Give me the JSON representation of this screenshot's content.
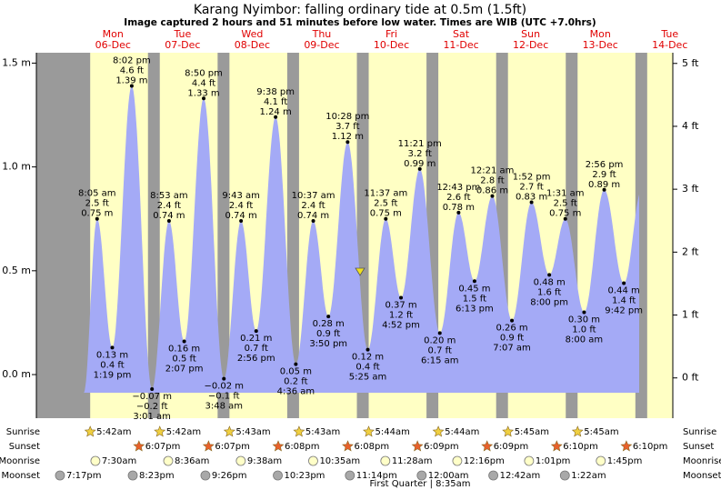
{
  "chart_data": {
    "type": "tide",
    "title": "Karang Nyimbor: falling  ordinary tide at 0.5m (1.5ft)",
    "subtitle": "Image captured 2 hours and 51 minutes before low water. Times are WIB (UTC +7.0hrs)",
    "color": "#a4aaf6",
    "ylim": [
      -0.21,
      1.55
    ],
    "yticks": [
      {
        "value": 0,
        "label": "0.0 m"
      },
      {
        "value": 0.5,
        "label": "0.5 m"
      },
      {
        "value": 1,
        "label": "1.0 m"
      },
      {
        "value": 1.5,
        "label": "1.5 m"
      }
    ],
    "y2lim": [
      -0.64,
      5.17
    ],
    "y2ticks": [
      {
        "value": 0,
        "label": "0 ft"
      },
      {
        "value": 1,
        "label": "1 ft"
      },
      {
        "value": 2,
        "label": "2 ft"
      },
      {
        "value": 3,
        "label": "3 ft"
      },
      {
        "value": 4,
        "label": "4 ft"
      },
      {
        "value": 5,
        "label": "5 ft"
      }
    ],
    "days": [
      {
        "weekday": "Mon",
        "date": "06-Dec",
        "tides": [
          {
            "time": "8:05 am",
            "value": 0.75,
            "m": "0.75 m",
            "ft": "2.5 ft"
          },
          {
            "time": "1:19 pm",
            "value": 0.13,
            "m": "0.13 m",
            "ft": "0.4 ft"
          },
          {
            "time": "8:02 pm",
            "value": 1.39,
            "m": "1.39 m",
            "ft": "4.6 ft"
          }
        ]
      },
      {
        "weekday": "Tue",
        "date": "07-Dec",
        "tides": [
          {
            "time": "3:01 am",
            "value": -0.07,
            "m": "−0.07 m",
            "ft": "−0.2 ft"
          },
          {
            "time": "8:53 am",
            "value": 0.74,
            "m": "0.74 m",
            "ft": "2.4 ft"
          },
          {
            "time": "2:07 pm",
            "value": 0.16,
            "m": "0.16 m",
            "ft": "0.5 ft"
          },
          {
            "time": "8:50 pm",
            "value": 1.33,
            "m": "1.33 m",
            "ft": "4.4 ft"
          }
        ]
      },
      {
        "weekday": "Wed",
        "date": "08-Dec",
        "tides": [
          {
            "time": "3:48 am",
            "value": -0.02,
            "m": "−0.02 m",
            "ft": "−0.1 ft"
          },
          {
            "time": "9:43 am",
            "value": 0.74,
            "m": "0.74 m",
            "ft": "2.4 ft"
          },
          {
            "time": "2:56 pm",
            "value": 0.21,
            "m": "0.21 m",
            "ft": "0.7 ft"
          },
          {
            "time": "9:38 pm",
            "value": 1.24,
            "m": "1.24 m",
            "ft": "4.1 ft"
          }
        ]
      },
      {
        "weekday": "Thu",
        "date": "09-Dec",
        "tides": [
          {
            "time": "4:36 am",
            "value": 0.05,
            "m": "0.05 m",
            "ft": "0.2 ft"
          },
          {
            "time": "10:37 am",
            "value": 0.74,
            "m": "0.74 m",
            "ft": "2.4 ft"
          },
          {
            "time": "3:50 pm",
            "value": 0.28,
            "m": "0.28 m",
            "ft": "0.9 ft"
          },
          {
            "time": "10:28 pm",
            "value": 1.12,
            "m": "1.12 m",
            "ft": "3.7 ft"
          }
        ]
      },
      {
        "weekday": "Fri",
        "date": "10-Dec",
        "tides": [
          {
            "time": "5:25 am",
            "value": 0.12,
            "m": "0.12 m",
            "ft": "0.4 ft"
          },
          {
            "time": "11:37 am",
            "value": 0.75,
            "m": "0.75 m",
            "ft": "2.5 ft"
          },
          {
            "time": "4:52 pm",
            "value": 0.37,
            "m": "0.37 m",
            "ft": "1.2 ft"
          },
          {
            "time": "11:21 pm",
            "value": 0.99,
            "m": "0.99 m",
            "ft": "3.2 ft"
          }
        ]
      },
      {
        "weekday": "Sat",
        "date": "11-Dec",
        "tides": [
          {
            "time": "6:15 am",
            "value": 0.2,
            "m": "0.20 m",
            "ft": "0.7 ft"
          },
          {
            "time": "12:43 pm",
            "value": 0.78,
            "m": "0.78 m",
            "ft": "2.6 ft"
          },
          {
            "time": "6:13 pm",
            "value": 0.45,
            "m": "0.45 m",
            "ft": "1.5 ft"
          }
        ]
      },
      {
        "weekday": "Sun",
        "date": "12-Dec",
        "tides": [
          {
            "time": "12:21 am",
            "value": 0.86,
            "m": "0.86 m",
            "ft": "2.8 ft"
          },
          {
            "time": "7:07 am",
            "value": 0.26,
            "m": "0.26 m",
            "ft": "0.9 ft"
          },
          {
            "time": "1:52 pm",
            "value": 0.83,
            "m": "0.83 m",
            "ft": "2.7 ft"
          },
          {
            "time": "8:00 pm",
            "value": 0.48,
            "m": "0.48 m",
            "ft": "1.6 ft"
          }
        ]
      },
      {
        "weekday": "Mon",
        "date": "13-Dec",
        "tides": [
          {
            "time": "1:31 am",
            "value": 0.75,
            "m": "0.75 m",
            "ft": "2.5 ft"
          },
          {
            "time": "8:00 am",
            "value": 0.3,
            "m": "0.30 m",
            "ft": "1.0 ft"
          },
          {
            "time": "2:56 pm",
            "value": 0.89,
            "m": "0.89 m",
            "ft": "2.9 ft"
          },
          {
            "time": "9:42 pm",
            "value": 0.44,
            "m": "0.44 m",
            "ft": "1.4 ft"
          }
        ]
      },
      {
        "weekday": "Tue",
        "date": "14-Dec",
        "tides": []
      }
    ],
    "rows": [
      {
        "label": "Sunrise",
        "times": [
          "5:42am",
          "5:42am",
          "5:43am",
          "5:43am",
          "5:44am",
          "5:44am",
          "5:45am",
          "5:45am"
        ]
      },
      {
        "label": "Sunset",
        "times": [
          "6:07pm",
          "6:07pm",
          "6:08pm",
          "6:08pm",
          "6:09pm",
          "6:09pm",
          "6:10pm",
          "6:10pm"
        ]
      },
      {
        "label": "Moonrise",
        "times": [
          "7:30am",
          "8:36am",
          "9:38am",
          "10:35am",
          "11:28am",
          "12:16pm",
          "1:01pm",
          "1:45pm"
        ]
      },
      {
        "label": "Moonset",
        "times": [
          "7:17pm",
          "8:23pm",
          "9:26pm",
          "10:23pm",
          "11:14pm",
          "12:00am",
          "12:42am",
          "1:22am"
        ]
      }
    ],
    "moon_phase": "First Quarter | 8:35am"
  }
}
